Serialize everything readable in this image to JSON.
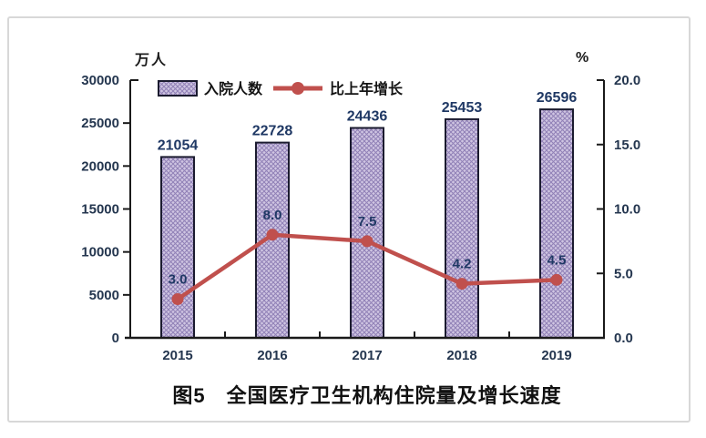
{
  "chart_data": {
    "type": "bar",
    "subtype": "bar-line-combo",
    "title": "图5　全国医疗卫生机构住院量及增长速度",
    "categories": [
      "2015",
      "2016",
      "2017",
      "2018",
      "2019"
    ],
    "series": [
      {
        "name": "入院人数",
        "type": "bar",
        "axis": "left",
        "values": [
          21054,
          22728,
          24436,
          25453,
          26596
        ],
        "value_labels": [
          "21054",
          "22728",
          "24436",
          "25453",
          "26596"
        ]
      },
      {
        "name": "比上年增长",
        "type": "line",
        "axis": "right",
        "values": [
          3.0,
          8.0,
          7.5,
          4.2,
          4.5
        ],
        "value_labels": [
          "3.0",
          "8.0",
          "7.5",
          "4.2",
          "4.5"
        ]
      }
    ],
    "left_axis": {
      "unit_label": "万人",
      "min": 0,
      "max": 30000,
      "step": 5000,
      "tick_labels": [
        "0",
        "5000",
        "10000",
        "15000",
        "20000",
        "25000",
        "30000"
      ]
    },
    "right_axis": {
      "unit_label": "%",
      "min": 0,
      "max": 20,
      "step": 5,
      "tick_labels": [
        "0.0",
        "5.0",
        "10.0",
        "15.0",
        "20.0"
      ]
    },
    "legend": [
      "入院人数",
      "比上年增长"
    ],
    "legend_position": "top",
    "grid": false
  },
  "colors": {
    "bar_fill": "#CFC5E2",
    "bar_hatch": "#9080B6",
    "bar_border": "#1B1B2F",
    "line": "#C0504D",
    "value_label": "#1F3864",
    "tick_label": "#24364F",
    "axis": "#1A1A1A",
    "text": "#141414",
    "frame_border": "#D8D8D8"
  }
}
